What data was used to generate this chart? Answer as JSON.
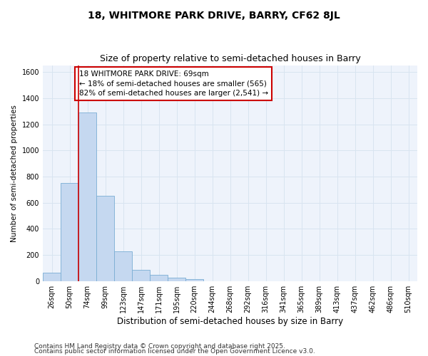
{
  "title": "18, WHITMORE PARK DRIVE, BARRY, CF62 8JL",
  "subtitle": "Size of property relative to semi-detached houses in Barry",
  "xlabel": "Distribution of semi-detached houses by size in Barry",
  "ylabel": "Number of semi-detached properties",
  "categories": [
    "26sqm",
    "50sqm",
    "74sqm",
    "99sqm",
    "123sqm",
    "147sqm",
    "171sqm",
    "195sqm",
    "220sqm",
    "244sqm",
    "268sqm",
    "292sqm",
    "316sqm",
    "341sqm",
    "365sqm",
    "389sqm",
    "413sqm",
    "437sqm",
    "462sqm",
    "486sqm",
    "510sqm"
  ],
  "values": [
    65,
    750,
    1290,
    650,
    230,
    85,
    45,
    25,
    15,
    0,
    0,
    0,
    0,
    0,
    0,
    0,
    0,
    0,
    0,
    0,
    0
  ],
  "bar_color": "#c5d8f0",
  "bar_edge_color": "#7aadd4",
  "grid_color": "#d8e4f0",
  "bg_color": "#eef3fb",
  "vline_color": "#cc0000",
  "vline_x": 1.5,
  "annotation_text": "18 WHITMORE PARK DRIVE: 69sqm\n← 18% of semi-detached houses are smaller (565)\n82% of semi-detached houses are larger (2,541) →",
  "annotation_box_edgecolor": "#cc0000",
  "footnote_line1": "Contains HM Land Registry data © Crown copyright and database right 2025.",
  "footnote_line2": "Contains public sector information licensed under the Open Government Licence v3.0.",
  "ylim": [
    0,
    1650
  ],
  "title_fontsize": 10,
  "subtitle_fontsize": 9,
  "xlabel_fontsize": 8.5,
  "ylabel_fontsize": 7.5,
  "tick_fontsize": 7,
  "annotation_fontsize": 7.5,
  "footnote_fontsize": 6.5
}
